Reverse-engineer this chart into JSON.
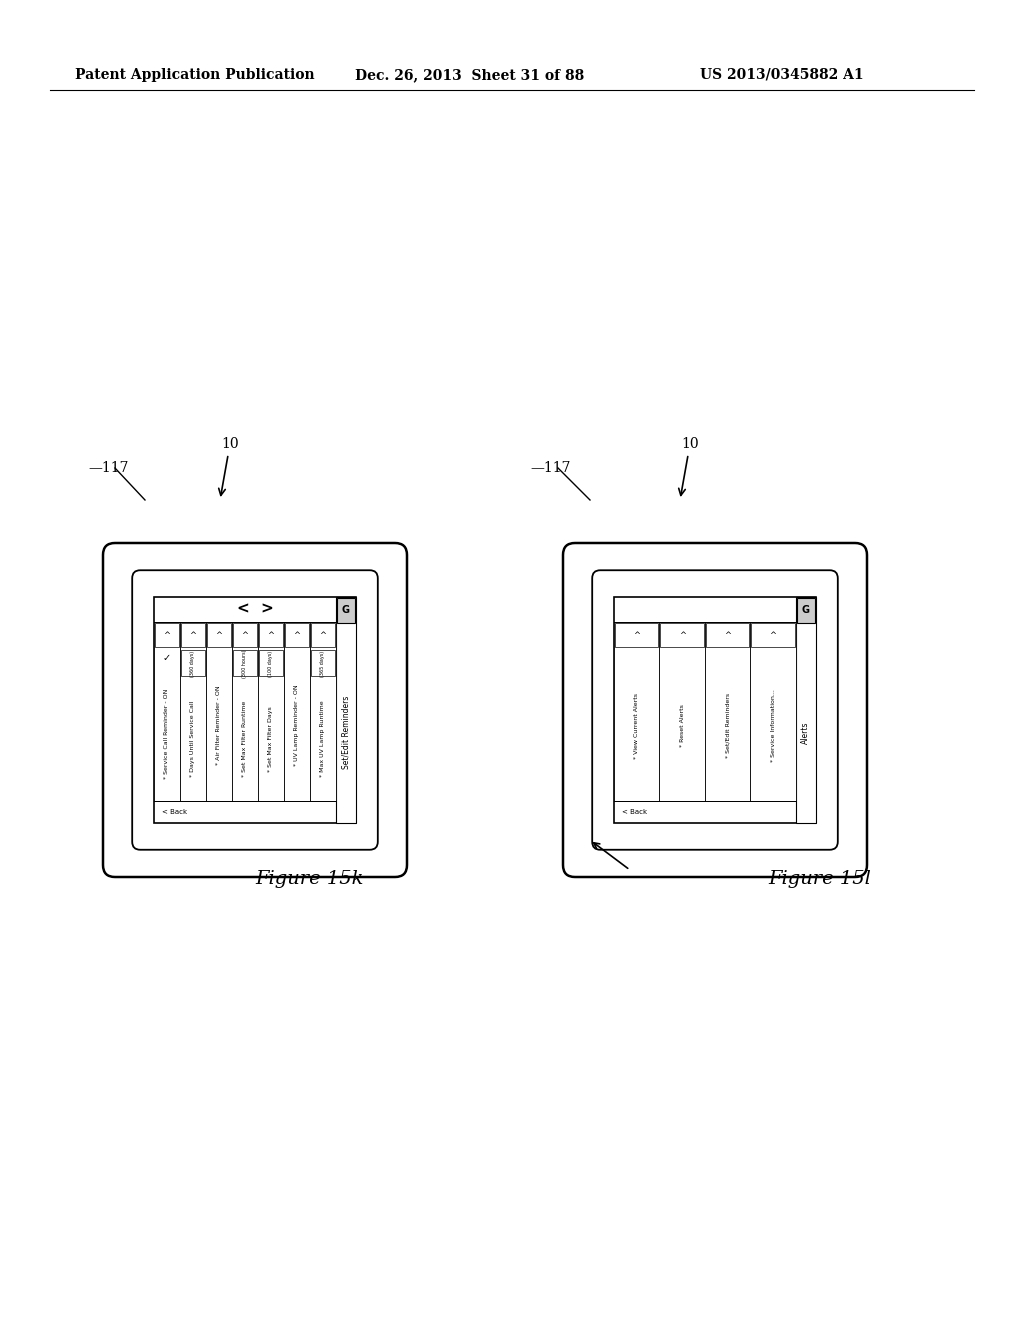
{
  "bg_color": "#ffffff",
  "header_text": "Patent Application Publication",
  "header_date": "Dec. 26, 2013  Sheet 31 of 88",
  "header_patent": "US 2013/0345882 A1",
  "fig_left_label": "Figure 15k",
  "fig_right_label": "Figure 15l",
  "left_screen_items": [
    "* Service Call Reminder - ON",
    "* Days Until Service Call",
    "* Air Filter Reminder - ON",
    "* Set Max Filter Runtime",
    "* Set Max Filter Days",
    "* UV Lamp Reminder - ON",
    "* Max UV Lamp Runtime"
  ],
  "left_screen_values": [
    "",
    "(360 days)",
    "",
    "(300 hours)",
    "(100 days)",
    "",
    "(365 days)"
  ],
  "left_screen_has_check": [
    true,
    false,
    false,
    false,
    false,
    false,
    false
  ],
  "left_screen_title": "Set/Edit Reminders",
  "left_screen_back": "< Back",
  "right_screen_items": [
    "* View Current Alerts",
    "* Reset Alerts",
    "* Set/Edit Reminders",
    "* Service Information..."
  ],
  "right_screen_title": "Alerts",
  "right_screen_back": "< Back"
}
